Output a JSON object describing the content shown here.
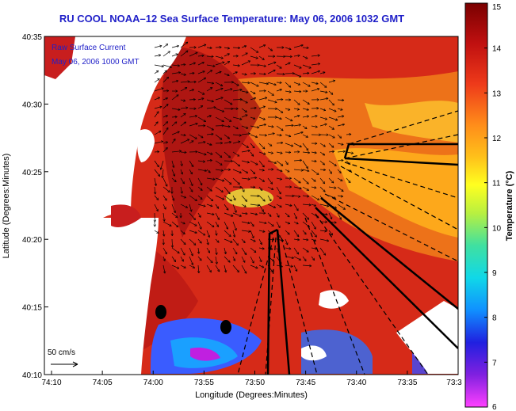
{
  "title": "RU COOL  NOAA–12  Sea Surface Temperature:  May 06, 2006 1032 GMT",
  "legend_box": {
    "line1": "Raw Surface Current",
    "line2": "May 06, 2006 1000 GMT"
  },
  "scale_label": "50 cm/s",
  "x_axis": {
    "label": "Longitude (Degrees:Minutes)",
    "ticks": [
      "74:10",
      "74:05",
      "74:00",
      "73:55",
      "73:50",
      "73:45",
      "73:40",
      "73:35",
      "73:3"
    ]
  },
  "y_axis": {
    "label": "Latitude (Degrees:Minutes)",
    "ticks": [
      "40:35",
      "40:30",
      "40:25",
      "40:20",
      "40:15",
      "40:10"
    ]
  },
  "colorbar": {
    "label": "Temperature (°C)",
    "ticks": [
      "15",
      "14",
      "13",
      "12",
      "11",
      "10",
      "9",
      "8",
      "7",
      "6"
    ]
  },
  "colors": {
    "title": "#1f1fc8",
    "land": "#ffffff",
    "sst_warm": "#c81e1e",
    "sst_cool": "#ff8c1a",
    "sst_cold": "#3050ff"
  }
}
